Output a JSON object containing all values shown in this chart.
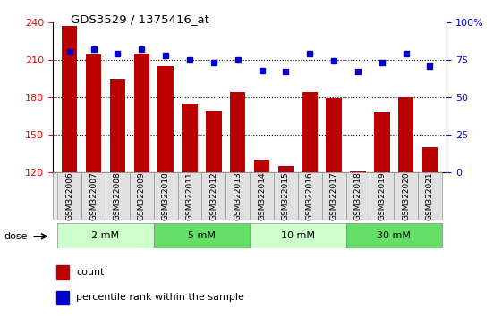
{
  "title": "GDS3529 / 1375416_at",
  "samples": [
    "GSM322006",
    "GSM322007",
    "GSM322008",
    "GSM322009",
    "GSM322010",
    "GSM322011",
    "GSM322012",
    "GSM322013",
    "GSM322014",
    "GSM322015",
    "GSM322016",
    "GSM322017",
    "GSM322018",
    "GSM322019",
    "GSM322020",
    "GSM322021"
  ],
  "counts": [
    237,
    214,
    194,
    215,
    205,
    175,
    169,
    184,
    130,
    125,
    184,
    179,
    121,
    168,
    180,
    140
  ],
  "percentiles": [
    80,
    82,
    79,
    82,
    78,
    75,
    73,
    75,
    68,
    67,
    79,
    74,
    67,
    73,
    79,
    71
  ],
  "ylim_left": [
    120,
    240
  ],
  "ylim_right": [
    0,
    100
  ],
  "yticks_left": [
    120,
    150,
    180,
    210,
    240
  ],
  "yticks_right": [
    0,
    25,
    50,
    75,
    100
  ],
  "ytick_right_labels": [
    "0",
    "25",
    "50",
    "75",
    "100%"
  ],
  "dose_groups": [
    {
      "label": "2 mM",
      "start": 0,
      "end": 4,
      "color": "#ccffcc"
    },
    {
      "label": "5 mM",
      "start": 4,
      "end": 8,
      "color": "#66dd66"
    },
    {
      "label": "10 mM",
      "start": 8,
      "end": 12,
      "color": "#ccffcc"
    },
    {
      "label": "30 mM",
      "start": 12,
      "end": 16,
      "color": "#66dd66"
    }
  ],
  "bar_color": "#bb0000",
  "dot_color": "#0000cc",
  "bar_width": 0.65,
  "tick_bg_color": "#d8d8d8",
  "separator_color": "#444444",
  "dose_border_color": "#888888",
  "legend_red": "#bb0000",
  "legend_blue": "#0000cc"
}
